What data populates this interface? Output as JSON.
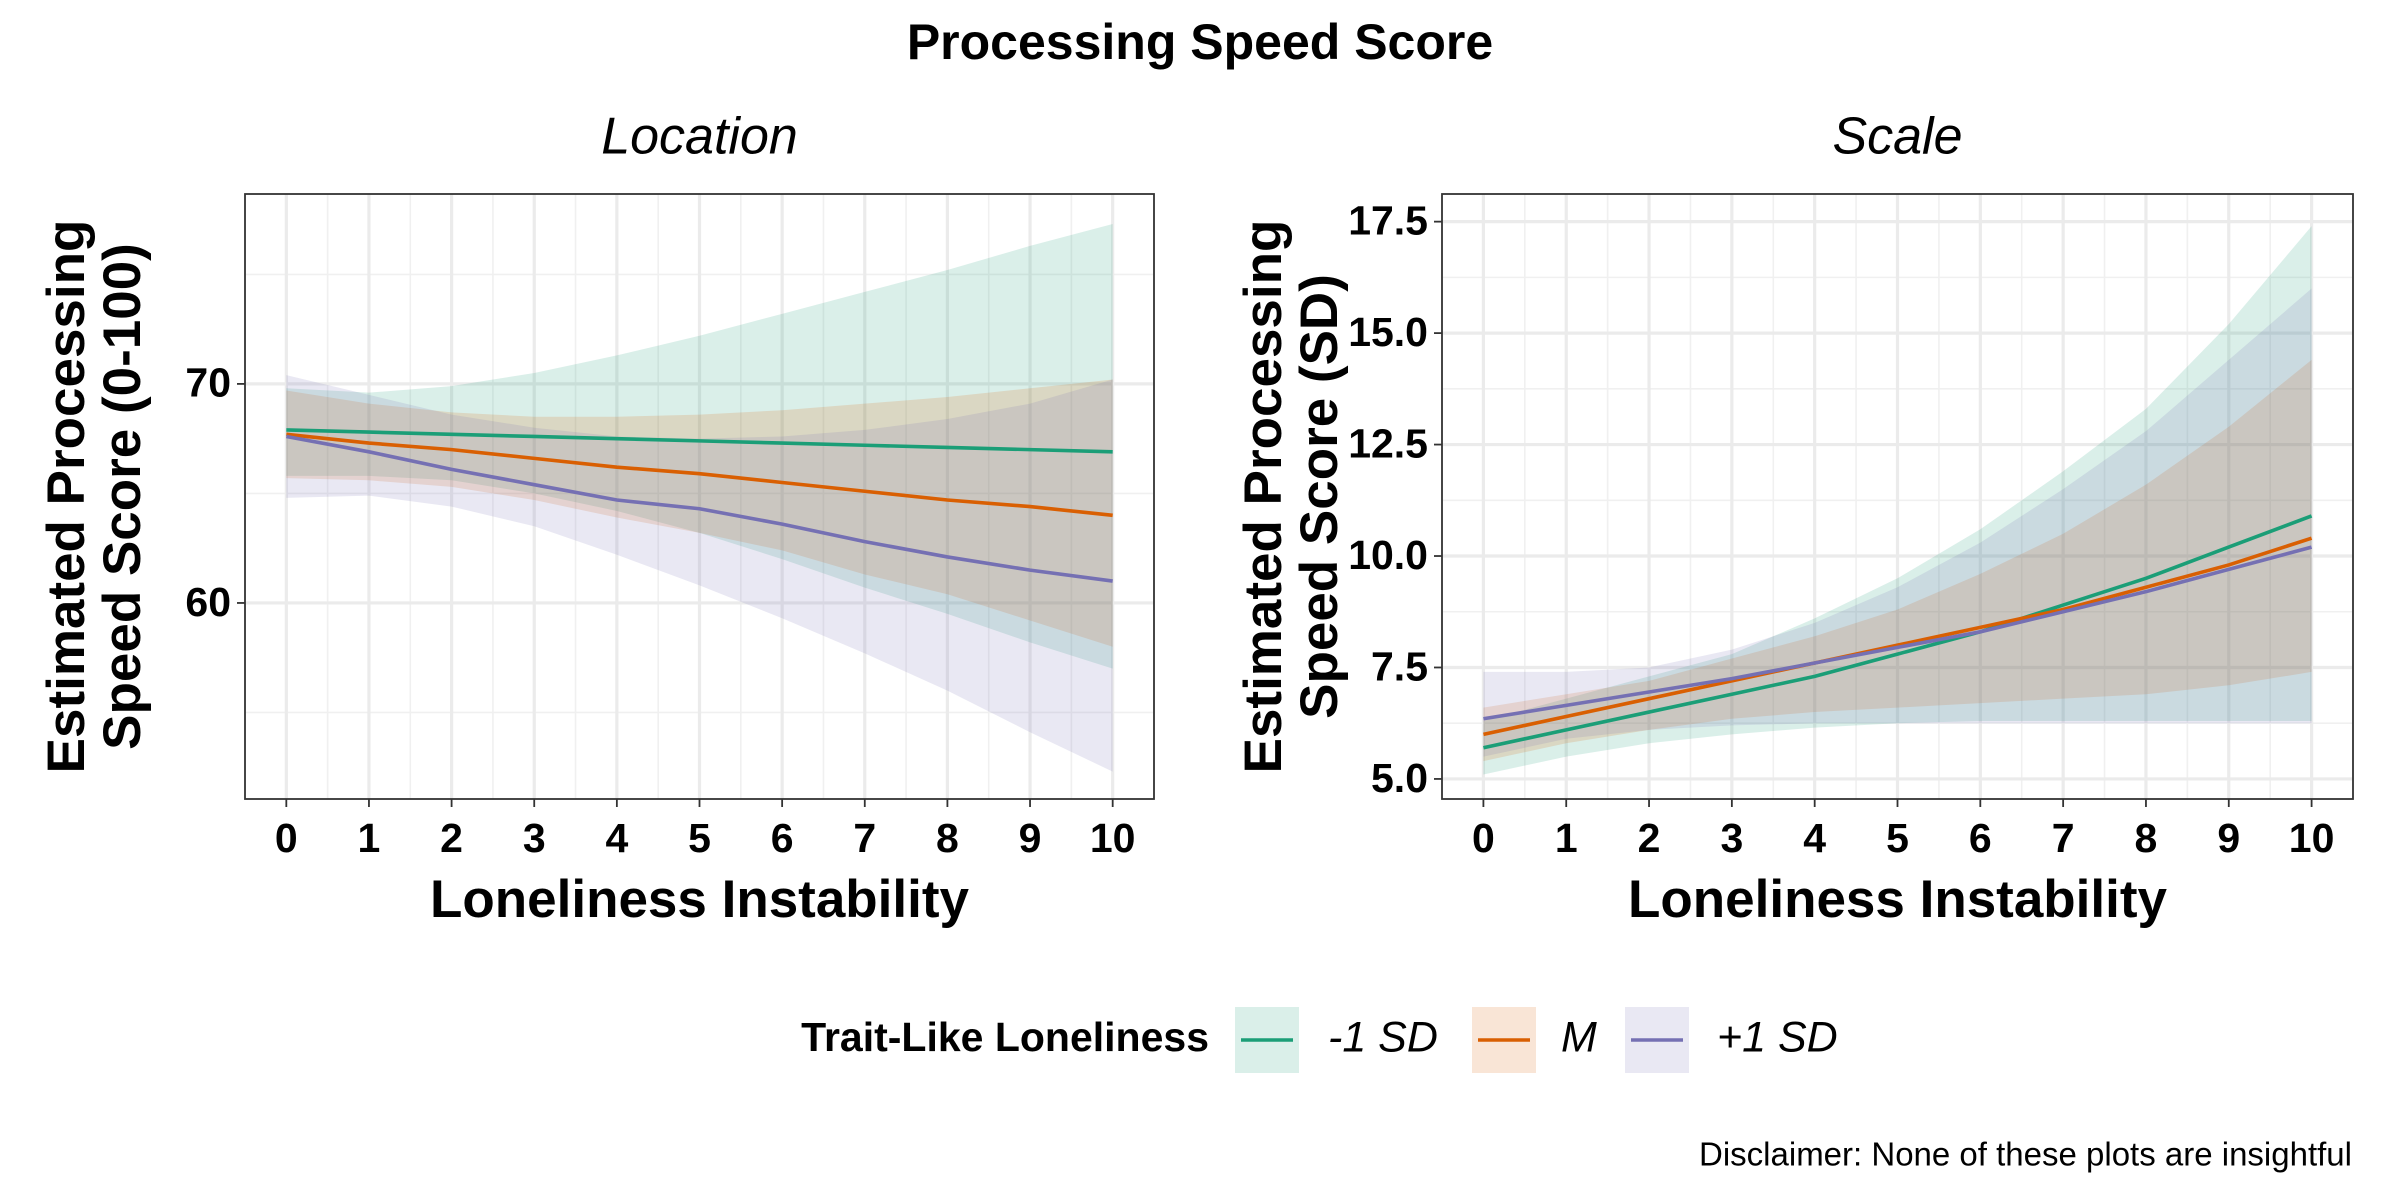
{
  "title": "Processing Speed Score",
  "caption": "Disclaimer: None of these plots are insightful",
  "legend": {
    "title": "Trait-Like Loneliness"
  },
  "chart_data": [
    {
      "type": "line",
      "title": "Location",
      "xlabel": "Loneliness Instability",
      "ylabel": [
        "Estimated Processing",
        "Speed Score (0-100)"
      ],
      "x": [
        0,
        1,
        2,
        3,
        4,
        5,
        6,
        7,
        8,
        9,
        10
      ],
      "xlim": [
        -0.5,
        10.5
      ],
      "xticks": [
        0,
        1,
        2,
        3,
        4,
        5,
        6,
        7,
        8,
        9,
        10
      ],
      "ylim": [
        51.05,
        78.67
      ],
      "yticks": [
        60,
        70
      ],
      "grid": true,
      "series": [
        {
          "name": "-1 SD",
          "color": "#1b9e77",
          "values": [
            67.9,
            67.8,
            67.7,
            67.6,
            67.5,
            67.4,
            67.3,
            67.2,
            67.1,
            67.0,
            66.9
          ],
          "upper": [
            69.8,
            69.6,
            69.9,
            70.5,
            71.3,
            72.2,
            73.2,
            74.2,
            75.2,
            76.3,
            77.3
          ],
          "lower": [
            65.8,
            65.8,
            65.6,
            65.0,
            64.2,
            63.2,
            62.0,
            60.7,
            59.5,
            58.2,
            57.0
          ]
        },
        {
          "name": "M",
          "color": "#d95f02",
          "values": [
            67.7,
            67.3,
            67.0,
            66.6,
            66.2,
            65.9,
            65.5,
            65.1,
            64.7,
            64.4,
            64.0
          ],
          "upper": [
            69.7,
            69.1,
            68.7,
            68.5,
            68.5,
            68.6,
            68.8,
            69.1,
            69.4,
            69.8,
            70.2
          ],
          "lower": [
            65.7,
            65.6,
            65.3,
            64.7,
            63.9,
            63.2,
            62.4,
            61.3,
            60.4,
            59.2,
            58.0
          ]
        },
        {
          "name": "+1 SD",
          "color": "#7570b3",
          "values": [
            67.6,
            66.9,
            66.1,
            65.4,
            64.7,
            64.3,
            63.6,
            62.8,
            62.1,
            61.5,
            61.0
          ],
          "upper": [
            70.4,
            69.5,
            68.6,
            68.0,
            67.6,
            67.5,
            67.6,
            67.9,
            68.4,
            69.1,
            70.2
          ],
          "lower": [
            64.8,
            64.9,
            64.4,
            63.5,
            62.2,
            60.8,
            59.3,
            57.7,
            56.0,
            54.1,
            52.3
          ]
        }
      ]
    },
    {
      "type": "line",
      "title": "Scale",
      "xlabel": "Loneliness Instability",
      "ylabel": [
        "Estimated Processing",
        "Speed Score (SD)"
      ],
      "x": [
        0,
        1,
        2,
        3,
        4,
        5,
        6,
        7,
        8,
        9,
        10
      ],
      "xlim": [
        -0.5,
        10.5
      ],
      "xticks": [
        0,
        1,
        2,
        3,
        4,
        5,
        6,
        7,
        8,
        9,
        10
      ],
      "ylim": [
        4.55,
        18.12
      ],
      "yticks": [
        {
          "value": 5,
          "label": "5.0"
        },
        7.5,
        {
          "value": 10,
          "label": "10.0"
        },
        12.5,
        {
          "value": 15,
          "label": "15.0"
        },
        17.5
      ],
      "grid": true,
      "series": [
        {
          "name": "-1 SD",
          "color": "#1b9e77",
          "values": [
            5.7,
            6.1,
            6.5,
            6.9,
            7.3,
            7.8,
            8.3,
            8.9,
            9.5,
            10.2,
            10.9
          ],
          "upper": [
            6.3,
            6.8,
            7.3,
            7.8,
            8.6,
            9.5,
            10.6,
            11.9,
            13.3,
            15.2,
            17.4
          ],
          "lower": [
            5.1,
            5.5,
            5.8,
            6.0,
            6.15,
            6.25,
            6.3,
            6.3,
            6.3,
            6.3,
            6.3
          ]
        },
        {
          "name": "M",
          "color": "#d95f02",
          "values": [
            6.0,
            6.4,
            6.8,
            7.2,
            7.6,
            8.0,
            8.4,
            8.8,
            9.3,
            9.8,
            10.4
          ],
          "upper": [
            6.6,
            6.9,
            7.2,
            7.7,
            8.2,
            8.8,
            9.6,
            10.5,
            11.6,
            12.9,
            14.4
          ],
          "lower": [
            5.4,
            5.8,
            6.1,
            6.35,
            6.5,
            6.6,
            6.7,
            6.8,
            6.9,
            7.1,
            7.4
          ]
        },
        {
          "name": "+1 SD",
          "color": "#7570b3",
          "values": [
            6.35,
            6.65,
            6.95,
            7.25,
            7.6,
            7.95,
            8.3,
            8.75,
            9.2,
            9.7,
            10.2
          ],
          "upper": [
            7.4,
            7.4,
            7.5,
            7.9,
            8.5,
            9.3,
            10.3,
            11.5,
            12.8,
            14.4,
            16.0
          ],
          "lower": [
            5.5,
            5.9,
            6.1,
            6.2,
            6.25,
            6.25,
            6.25,
            6.25,
            6.25,
            6.25,
            6.25
          ]
        }
      ]
    }
  ]
}
